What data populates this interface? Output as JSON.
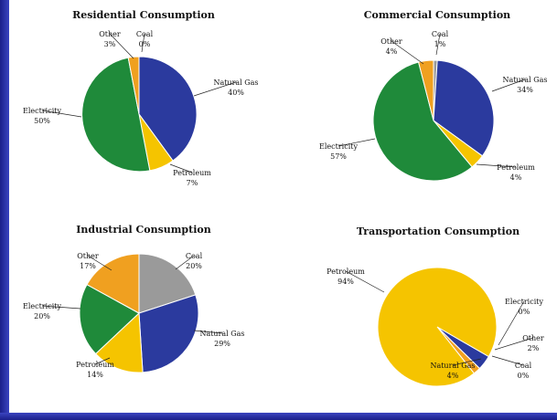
{
  "chart_data": [
    {
      "type": "pie",
      "title": "Residential Consumption",
      "slices": [
        {
          "name": "Coal",
          "value": 0,
          "label": "0%",
          "color": "#9a9a9a"
        },
        {
          "name": "Natural Gas",
          "value": 40,
          "label": "40%",
          "color": "#2b3a9e"
        },
        {
          "name": "Petroleum",
          "value": 7,
          "label": "7%",
          "color": "#f5c400"
        },
        {
          "name": "Electricity",
          "value": 50,
          "label": "50%",
          "color": "#1f8a3a"
        },
        {
          "name": "Other",
          "value": 3,
          "label": "3%",
          "color": "#f0a020"
        }
      ]
    },
    {
      "type": "pie",
      "title": "Commercial Consumption",
      "slices": [
        {
          "name": "Coal",
          "value": 1,
          "label": "1%",
          "color": "#9a9a9a"
        },
        {
          "name": "Natural Gas",
          "value": 34,
          "label": "34%",
          "color": "#2b3a9e"
        },
        {
          "name": "Petroleum",
          "value": 4,
          "label": "4%",
          "color": "#f5c400"
        },
        {
          "name": "Electricity",
          "value": 57,
          "label": "57%",
          "color": "#1f8a3a"
        },
        {
          "name": "Other",
          "value": 4,
          "label": "4%",
          "color": "#f0a020"
        }
      ]
    },
    {
      "type": "pie",
      "title": "Industrial  Consumption",
      "slices": [
        {
          "name": "Coal",
          "value": 20,
          "label": "20%",
          "color": "#9a9a9a"
        },
        {
          "name": "Natural Gas",
          "value": 29,
          "label": "29%",
          "color": "#2b3a9e"
        },
        {
          "name": "Petroleum",
          "value": 14,
          "label": "14%",
          "color": "#f5c400"
        },
        {
          "name": "Electricity",
          "value": 20,
          "label": "20%",
          "color": "#1f8a3a"
        },
        {
          "name": "Other",
          "value": 17,
          "label": "17%",
          "color": "#f0a020"
        }
      ]
    },
    {
      "type": "pie",
      "title": "Transportation  Consumption",
      "slices": [
        {
          "name": "Natural Gas",
          "value": 4,
          "label": "4%",
          "color": "#2b3a9e"
        },
        {
          "name": "Coal",
          "value": 0,
          "label": "0%",
          "color": "#9a9a9a"
        },
        {
          "name": "Other",
          "value": 2,
          "label": "2%",
          "color": "#f0a020"
        },
        {
          "name": "Electricity",
          "value": 0,
          "label": "0%",
          "color": "#1f8a3a"
        },
        {
          "name": "Petroleum",
          "value": 94,
          "label": "94%",
          "color": "#f5c400"
        }
      ]
    }
  ]
}
